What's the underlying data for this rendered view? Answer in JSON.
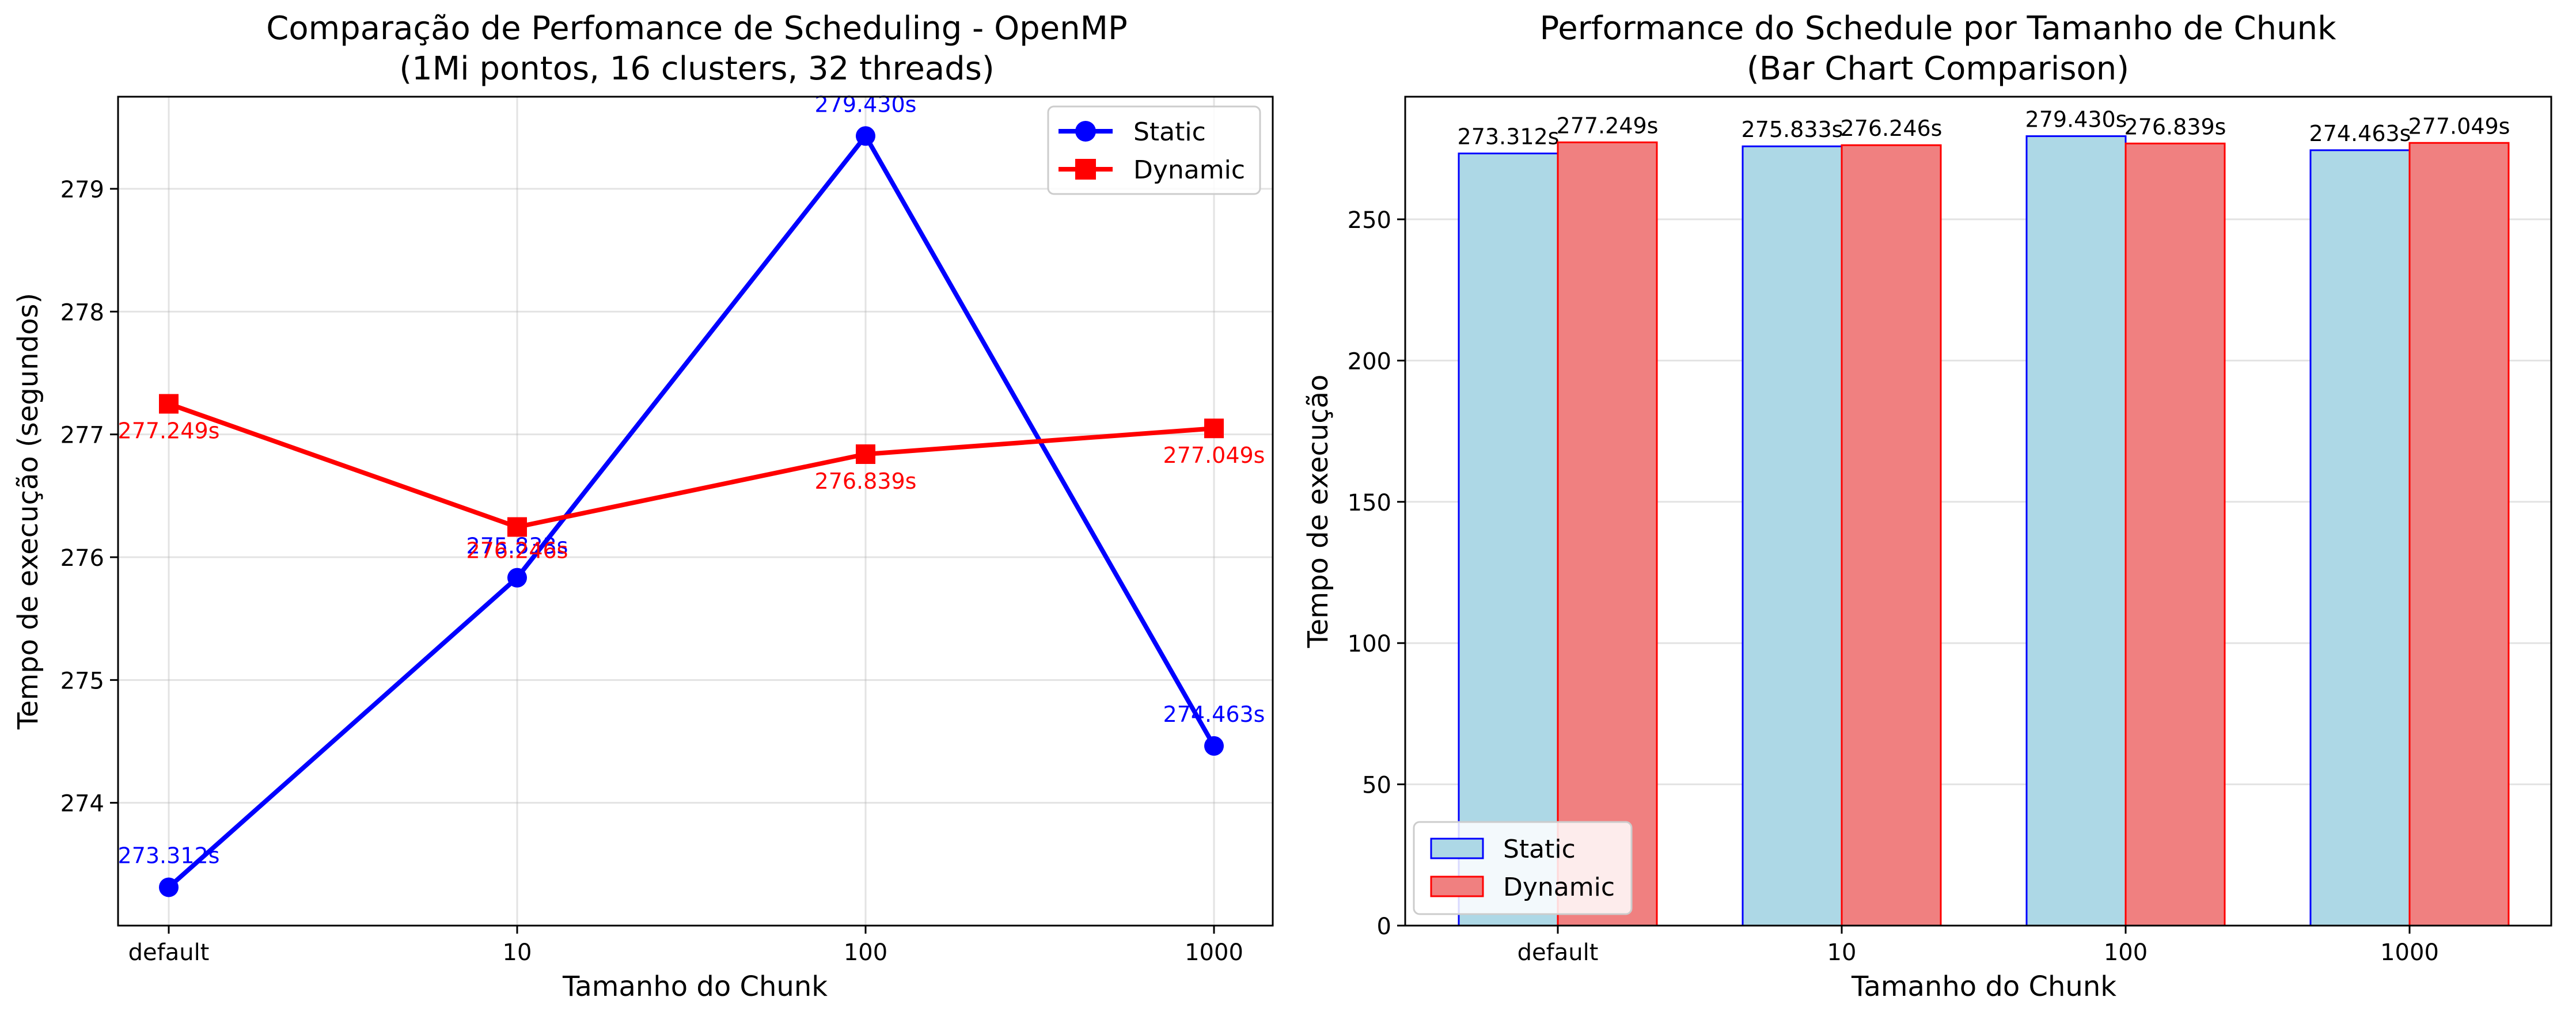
{
  "chart_data": [
    {
      "type": "line",
      "title_line1": "Comparação de Perfomance de Scheduling - OpenMP",
      "title_line2": "(1Mi pontos, 16 clusters, 32 threads)",
      "xlabel": "Tamanho do Chunk",
      "ylabel": "Tempo de execução (segundos)",
      "categories": [
        "default",
        "10",
        "100",
        "1000"
      ],
      "ylim": [
        273.0,
        279.75
      ],
      "yticks": [
        "274",
        "275",
        "276",
        "277",
        "278",
        "279"
      ],
      "grid": true,
      "legend_position": "top-right",
      "series": [
        {
          "name": "Static",
          "color": "#0000ff",
          "marker": "circle",
          "values": [
            273.312,
            275.833,
            279.43,
            274.463
          ],
          "labels": [
            "273.312s",
            "275.833s",
            "279.430s",
            "274.463s"
          ]
        },
        {
          "name": "Dynamic",
          "color": "#ff0000",
          "marker": "square",
          "values": [
            277.249,
            276.246,
            276.839,
            277.049
          ],
          "labels": [
            "277.249s",
            "276.246s",
            "276.839s",
            "277.049s"
          ]
        }
      ]
    },
    {
      "type": "bar",
      "title_line1": "Performance do Schedule por Tamanho de Chunk",
      "title_line2": "(Bar Chart Comparison)",
      "xlabel": "Tamanho do Chunk",
      "ylabel": "Tempo de execução",
      "categories": [
        "default",
        "10",
        "100",
        "1000"
      ],
      "ylim": [
        0,
        293.4
      ],
      "yticks": [
        "0",
        "50",
        "100",
        "150",
        "200",
        "250"
      ],
      "grid": true,
      "legend_position": "bottom-left",
      "series": [
        {
          "name": "Static",
          "fill": "#add8e6",
          "edge": "#0000ff",
          "values": [
            273.312,
            275.833,
            279.43,
            274.463
          ],
          "labels": [
            "273.312s",
            "275.833s",
            "279.430s",
            "274.463s"
          ]
        },
        {
          "name": "Dynamic",
          "fill": "#f08080",
          "edge": "#ff0000",
          "values": [
            277.249,
            276.246,
            276.839,
            277.049
          ],
          "labels": [
            "277.249s",
            "276.246s",
            "276.839s",
            "277.049s"
          ]
        }
      ]
    }
  ]
}
